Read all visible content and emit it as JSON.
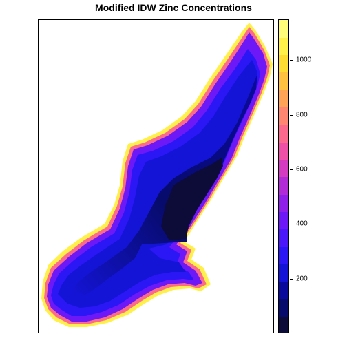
{
  "title": "Modified IDW Zinc Concentrations",
  "chart_data": {
    "type": "heatmap",
    "title": "Modified IDW Zinc Concentrations",
    "colorbar": {
      "range": [
        0,
        1150
      ],
      "steps": [
        "#0D0B38",
        "#070B6B",
        "#0A0A9D",
        "#1414D6",
        "#2B16F6",
        "#4A16FA",
        "#6C18F7",
        "#8F20EA",
        "#B12CD7",
        "#D43BC0",
        "#EE4FA7",
        "#FB6A8C",
        "#FF8670",
        "#FFA356",
        "#FFC13F",
        "#FFDC32",
        "#FFF04A",
        "#FFFC7A"
      ],
      "ticks": [
        200,
        400,
        600,
        800,
        1000
      ]
    }
  }
}
